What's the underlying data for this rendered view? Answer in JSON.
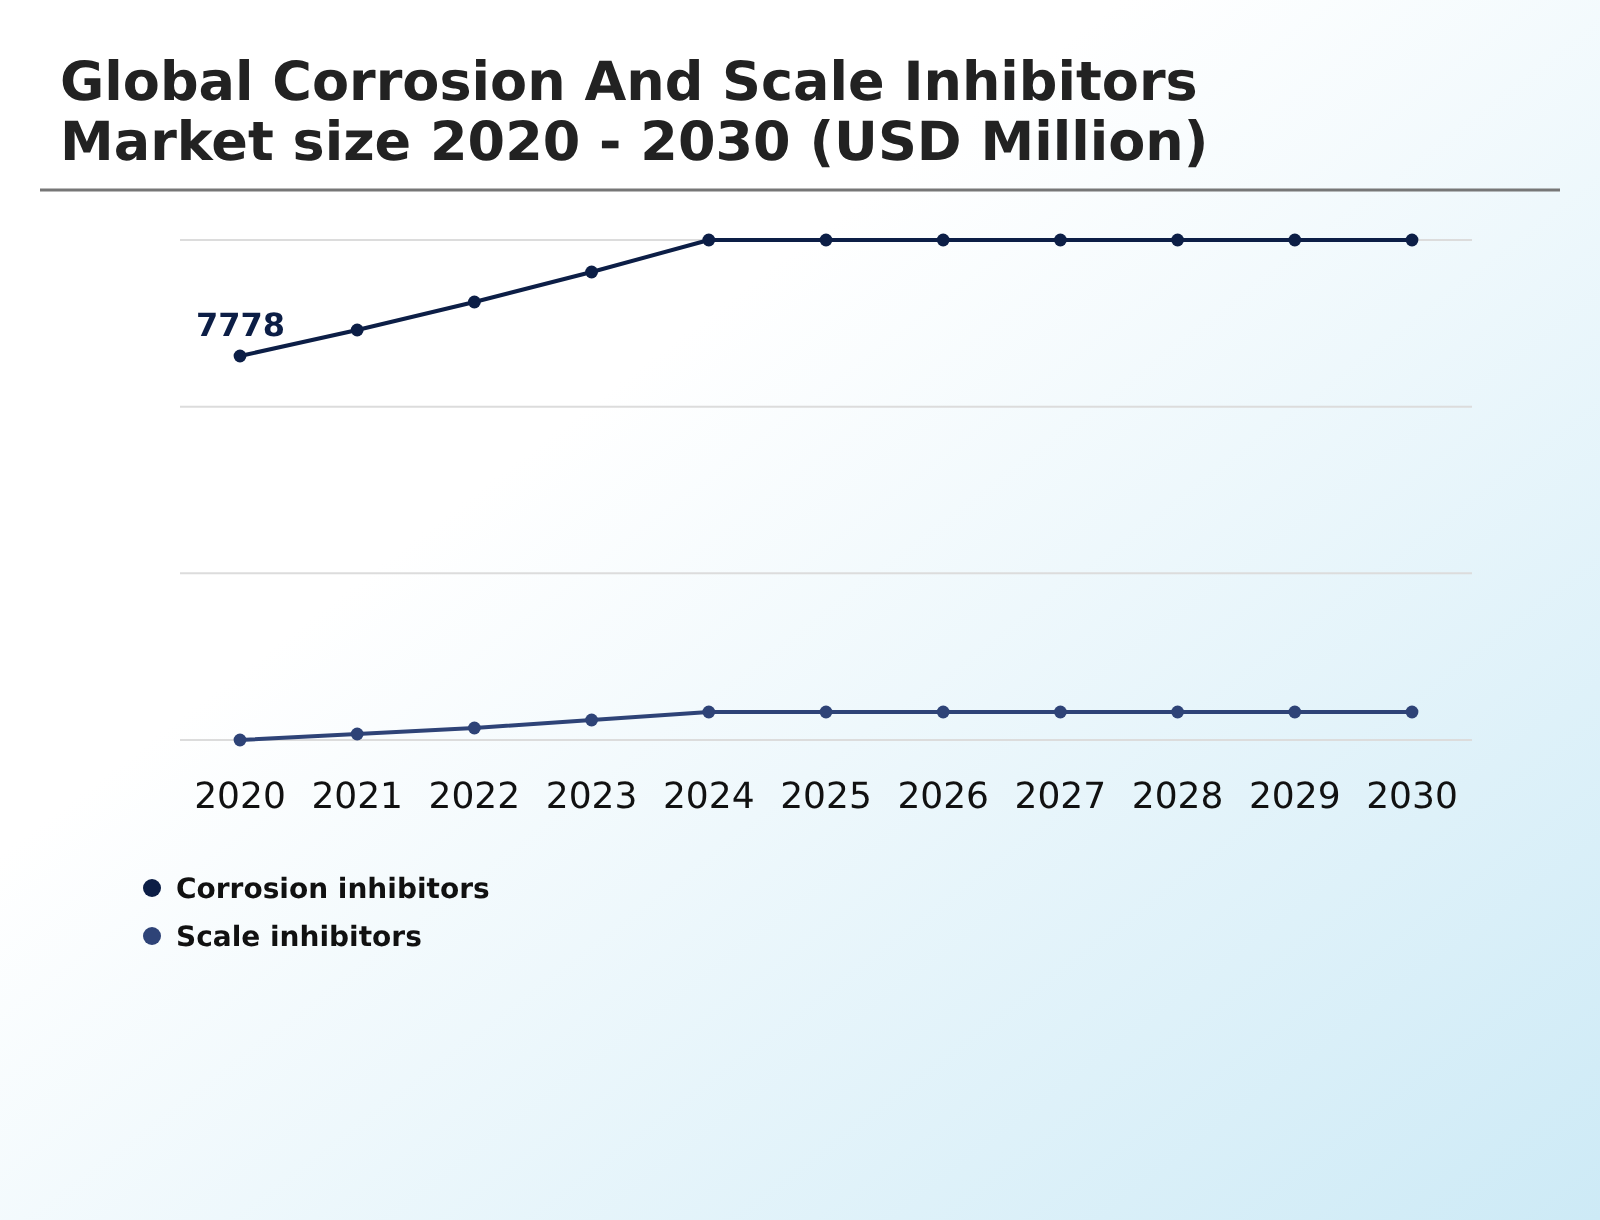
{
  "chart_data": {
    "type": "line",
    "title": "Global Corrosion And Scale Inhibitors Market size 2020 - 2030 (USD Million)",
    "categories": [
      "2020",
      "2021",
      "2022",
      "2023",
      "2024",
      "2025",
      "2026",
      "2027",
      "2028",
      "2029",
      "2030"
    ],
    "series": [
      {
        "name": "Corrosion inhibitors",
        "color": "#0c1e46",
        "values": [
          7778,
          8305,
          8872,
          9480,
          10128,
          10128,
          10128,
          10128,
          10128,
          10128,
          10128
        ],
        "value_labels": [
          "7778",
          null,
          null,
          null,
          null,
          null,
          null,
          null,
          null,
          null,
          null
        ]
      },
      {
        "name": "Scale inhibitors",
        "color": "#2e4377",
        "values": [
          0,
          122,
          243,
          405,
          567,
          567,
          567,
          567,
          567,
          567,
          567
        ]
      }
    ],
    "ylim": [
      0,
      10128
    ],
    "yticks": [
      {
        "value": 0,
        "label": null
      },
      {
        "value": 3376,
        "label": null
      },
      {
        "value": 6752,
        "label": null
      },
      {
        "value": 10128,
        "label": null
      }
    ],
    "grid": "y",
    "legend": "bottom left",
    "marker": "circle",
    "line_style": "solid"
  }
}
